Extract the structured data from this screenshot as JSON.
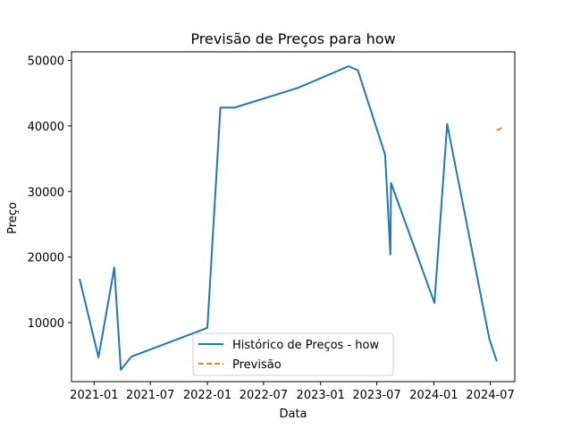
{
  "chart_data": {
    "type": "line",
    "title": "Previsão de Preços para how",
    "xlabel": "Data",
    "ylabel": "Preço",
    "x_ticks": [
      "2021-01",
      "2021-07",
      "2022-01",
      "2022-07",
      "2023-01",
      "2023-07",
      "2024-01",
      "2024-07"
    ],
    "y_ticks": [
      "10000",
      "20000",
      "30000",
      "40000",
      "50000"
    ],
    "ylim": [
      1000,
      51300
    ],
    "xlim": [
      "2020-10-20",
      "2024-09-18"
    ],
    "legend_position": "lower-center",
    "series": [
      {
        "name": "Histórico de Preços - how",
        "color": "#1f77b4",
        "style": "solid",
        "points": [
          {
            "x": "2020-11-15",
            "y": 16700
          },
          {
            "x": "2021-01-15",
            "y": 4700
          },
          {
            "x": "2021-03-07",
            "y": 18400
          },
          {
            "x": "2021-03-28",
            "y": 2800
          },
          {
            "x": "2021-05-01",
            "y": 4800
          },
          {
            "x": "2022-01-01",
            "y": 9200
          },
          {
            "x": "2022-02-12",
            "y": 42800
          },
          {
            "x": "2022-03-30",
            "y": 42800
          },
          {
            "x": "2022-10-20",
            "y": 45800
          },
          {
            "x": "2023-04-01",
            "y": 49100
          },
          {
            "x": "2023-05-01",
            "y": 48500
          },
          {
            "x": "2023-07-28",
            "y": 35600
          },
          {
            "x": "2023-08-14",
            "y": 20400
          },
          {
            "x": "2023-08-16",
            "y": 31300
          },
          {
            "x": "2024-01-03",
            "y": 13000
          },
          {
            "x": "2024-02-13",
            "y": 40300
          },
          {
            "x": "2024-06-28",
            "y": 7500
          },
          {
            "x": "2024-07-22",
            "y": 4100
          }
        ]
      },
      {
        "name": "Previsão",
        "color": "#ff7f0e",
        "style": "dashed",
        "points": [
          {
            "x": "2024-07-22",
            "y": 39300
          },
          {
            "x": "2024-08-10",
            "y": 39800
          }
        ]
      }
    ]
  }
}
